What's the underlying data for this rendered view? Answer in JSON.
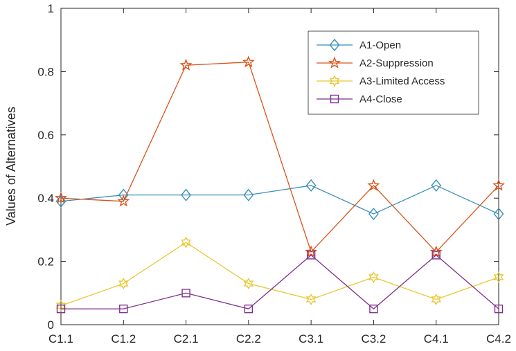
{
  "chart_data": {
    "type": "line",
    "title": "",
    "xlabel": "",
    "ylabel": "Values of Alternatives",
    "categories": [
      "C1.1",
      "C1.2",
      "C2.1",
      "C2.2",
      "C3.1",
      "C3.2",
      "C4.1",
      "C4.2"
    ],
    "ylim": [
      0,
      1
    ],
    "yticks": [
      "0",
      "0.2",
      "0.4",
      "0.6",
      "0.8",
      "1"
    ],
    "grid": false,
    "legend_position": "top-right",
    "series": [
      {
        "name": "A1-Open",
        "marker": "diamond",
        "color": "#3a8fb7",
        "values": [
          0.39,
          0.41,
          0.41,
          0.41,
          0.44,
          0.35,
          0.44,
          0.35
        ]
      },
      {
        "name": "A2-Suppression",
        "marker": "star",
        "color": "#d95319",
        "values": [
          0.4,
          0.39,
          0.82,
          0.83,
          0.23,
          0.44,
          0.23,
          0.44
        ]
      },
      {
        "name": "A3-Limited Access",
        "marker": "hexagram",
        "color": "#e8c832",
        "values": [
          0.06,
          0.13,
          0.26,
          0.13,
          0.08,
          0.15,
          0.08,
          0.15
        ]
      },
      {
        "name": "A4-Close",
        "marker": "square",
        "color": "#7e2f8e",
        "values": [
          0.05,
          0.05,
          0.1,
          0.05,
          0.22,
          0.05,
          0.22,
          0.05
        ]
      }
    ]
  }
}
